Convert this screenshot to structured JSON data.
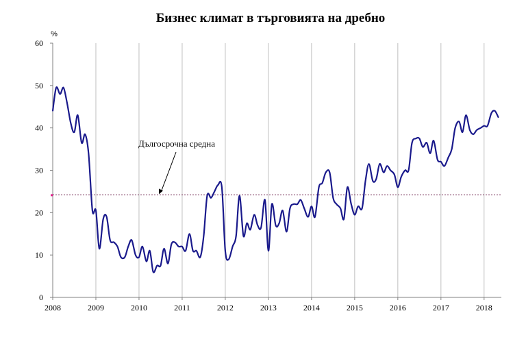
{
  "chart_data": {
    "type": "line",
    "title": "Бизнес климат в търговията на дребно",
    "ylabel": "%",
    "xlabel": "",
    "ylim": [
      0,
      60
    ],
    "yticks": [
      "0",
      "10",
      "20",
      "30",
      "40",
      "50",
      "60"
    ],
    "xlim": [
      2008.0,
      2018.4
    ],
    "xticks": [
      "2008",
      "2009",
      "2010",
      "2011",
      "2012",
      "2013",
      "2014",
      "2015",
      "2016",
      "2017",
      "2018"
    ],
    "grid": "vertical lines at years",
    "reference_line": {
      "label": "Дългосрочна средна",
      "value": 24.2,
      "style": "dotted"
    },
    "series": [
      {
        "color": "#1a1a8c",
        "x": [
          2008.0,
          2008.08,
          2008.17,
          2008.25,
          2008.33,
          2008.42,
          2008.5,
          2008.58,
          2008.67,
          2008.75,
          2008.83,
          2008.92,
          2009.0,
          2009.08,
          2009.17,
          2009.25,
          2009.33,
          2009.42,
          2009.5,
          2009.58,
          2009.67,
          2009.75,
          2009.83,
          2009.92,
          2010.0,
          2010.08,
          2010.17,
          2010.25,
          2010.33,
          2010.42,
          2010.5,
          2010.58,
          2010.67,
          2010.75,
          2010.83,
          2010.92,
          2011.0,
          2011.08,
          2011.17,
          2011.25,
          2011.33,
          2011.42,
          2011.5,
          2011.58,
          2011.67,
          2011.75,
          2011.83,
          2011.92,
          2012.0,
          2012.08,
          2012.17,
          2012.25,
          2012.33,
          2012.42,
          2012.5,
          2012.58,
          2012.67,
          2012.75,
          2012.83,
          2012.92,
          2013.0,
          2013.08,
          2013.17,
          2013.25,
          2013.33,
          2013.42,
          2013.5,
          2013.58,
          2013.67,
          2013.75,
          2013.83,
          2013.92,
          2014.0,
          2014.08,
          2014.17,
          2014.25,
          2014.33,
          2014.42,
          2014.5,
          2014.58,
          2014.67,
          2014.75,
          2014.83,
          2014.92,
          2015.0,
          2015.08,
          2015.17,
          2015.25,
          2015.33,
          2015.42,
          2015.5,
          2015.58,
          2015.67,
          2015.75,
          2015.83,
          2015.92,
          2016.0,
          2016.08,
          2016.17,
          2016.25,
          2016.33,
          2016.42,
          2016.5,
          2016.58,
          2016.67,
          2016.75,
          2016.83,
          2016.92,
          2017.0,
          2017.08,
          2017.17,
          2017.25,
          2017.33,
          2017.42,
          2017.5,
          2017.58,
          2017.67,
          2017.75,
          2017.83,
          2017.92,
          2018.0,
          2018.08,
          2018.17,
          2018.25,
          2018.33
        ],
        "values": [
          44,
          49.5,
          48,
          49.5,
          46,
          41,
          39,
          43,
          36.5,
          38.5,
          34,
          20.5,
          20.5,
          11.5,
          18.5,
          19,
          13.5,
          13,
          12,
          9.5,
          9.5,
          12,
          13.5,
          10,
          9.5,
          12,
          8.5,
          11,
          6,
          7.5,
          7.5,
          11.5,
          8,
          12.5,
          13,
          12,
          12,
          11,
          15,
          11,
          11,
          9.5,
          14.5,
          24,
          23.5,
          25,
          26.5,
          26,
          11,
          9,
          12,
          14.5,
          24,
          14.5,
          17.5,
          16,
          19.5,
          17,
          16.5,
          23,
          11,
          22,
          17,
          17.5,
          20.5,
          15.5,
          21,
          22,
          22,
          23,
          21,
          19,
          21.5,
          19,
          26,
          27,
          29.5,
          29.5,
          23.5,
          22,
          21,
          18.5,
          26,
          22,
          19.5,
          21.5,
          21,
          27.5,
          31.5,
          27.5,
          28,
          31.5,
          29.5,
          31,
          30,
          29,
          26,
          28.5,
          30,
          30,
          36.5,
          37.5,
          37.5,
          35.5,
          36.5,
          34,
          37,
          32.5,
          32,
          31,
          33,
          35,
          40,
          41.5,
          39,
          43,
          39.5,
          38.5,
          39.5,
          40,
          40.5,
          40.5,
          43.5,
          44,
          42.5
        ]
      }
    ]
  }
}
